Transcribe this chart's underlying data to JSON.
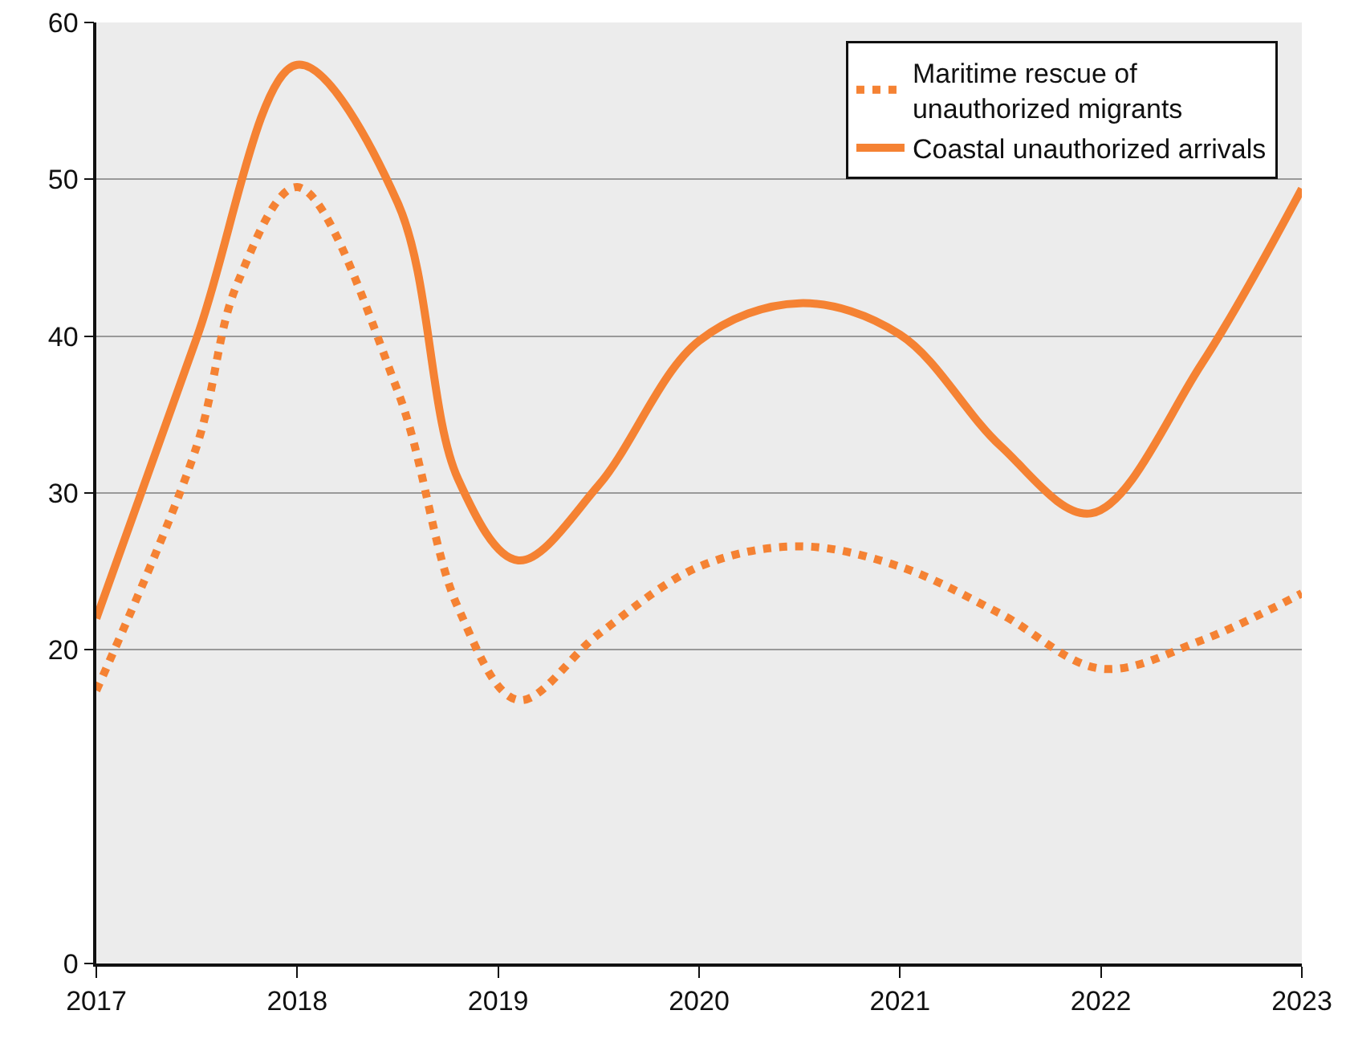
{
  "chart_data": {
    "type": "line",
    "xlim": [
      2017,
      2023
    ],
    "xticks": [
      2017,
      2018,
      2019,
      2020,
      2021,
      2022,
      2023
    ],
    "ylim": [
      0,
      60
    ],
    "yticks": [
      0,
      20,
      30,
      40,
      50,
      60
    ],
    "grid": "y",
    "legend": "top right",
    "series": [
      {
        "name": "Maritime rescue of unauthorized migrants",
        "color": "#f58233",
        "line_style": "dotted",
        "x": [
          2017,
          2017.5,
          2017.7,
          2018,
          2018.5,
          2018.8,
          2019.1,
          2019.5,
          2020,
          2020.5,
          2021,
          2021.5,
          2022,
          2022.5,
          2023
        ],
        "values": [
          17.4,
          33.0,
          43.3,
          49.5,
          36.5,
          22.7,
          16.8,
          21.0,
          25.3,
          26.6,
          25.3,
          22.3,
          18.8,
          20.6,
          23.6
        ]
      },
      {
        "name": "Coastal unauthorized arrivals",
        "color": "#f58233",
        "line_style": "solid",
        "x": [
          2017,
          2017.5,
          2018,
          2018.5,
          2018.8,
          2019.1,
          2019.5,
          2020,
          2020.5,
          2021,
          2021.5,
          2021.95,
          2022.5,
          2023
        ],
        "values": [
          22.0,
          39.9,
          57.3,
          48.5,
          30.9,
          25.7,
          30.5,
          39.7,
          42.1,
          40.1,
          33.0,
          28.7,
          38.2,
          49.4
        ]
      }
    ]
  }
}
